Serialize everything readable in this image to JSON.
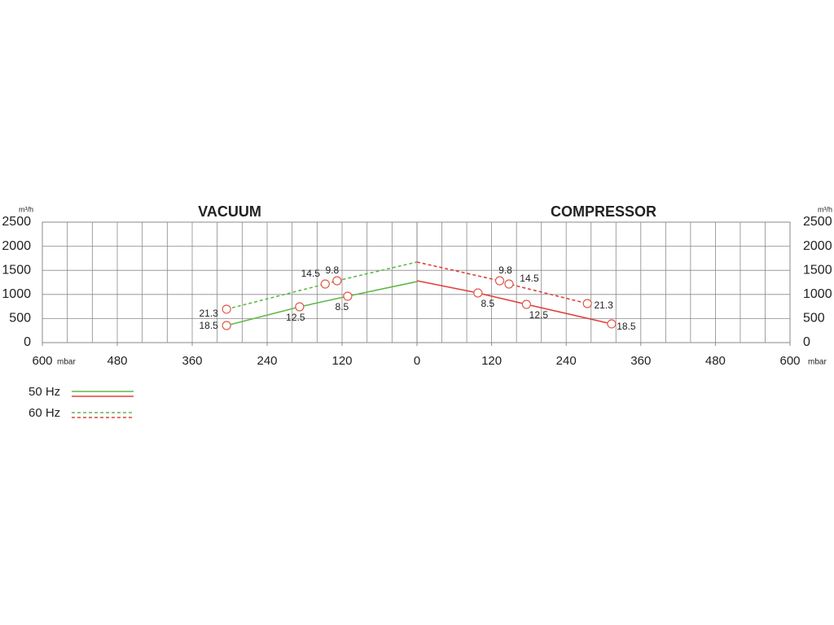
{
  "chart_data": [
    {
      "type": "line",
      "title": "VACUUM",
      "y_label": "m³/h",
      "x_label": "mbar",
      "yaxis_side": "left",
      "x_reversed": true,
      "xlim": [
        0,
        600
      ],
      "ylim": [
        0,
        2500
      ],
      "xticks": [
        600,
        480,
        360,
        240,
        120
      ],
      "yticks": [
        0,
        500,
        1000,
        1500,
        2000,
        2500
      ],
      "xgrid": [
        40,
        80,
        120,
        160,
        200,
        240,
        280,
        320,
        360,
        400,
        440,
        480,
        520,
        560
      ],
      "series": [
        {
          "style": "solid",
          "color": "#62b94a",
          "x": [
            305,
            188,
            111,
            0
          ],
          "values": [
            355,
            743,
            963,
            1267
          ],
          "labels": [
            "18.5",
            "12.5",
            "8.5",
            null
          ]
        },
        {
          "style": "dashed",
          "color": "#62b94a",
          "x": [
            305,
            147,
            128,
            0
          ],
          "values": [
            693,
            1216,
            1284,
            1672
          ],
          "labels": [
            "21.3",
            "14.5",
            "9.8",
            null
          ]
        }
      ]
    },
    {
      "type": "line",
      "title": "COMPRESSOR",
      "y_label": "m³/h",
      "x_label": "mbar",
      "yaxis_side": "right",
      "x_reversed": false,
      "xlim": [
        0,
        600
      ],
      "ylim": [
        0,
        2500
      ],
      "xticks": [
        0,
        120,
        240,
        360,
        480,
        600
      ],
      "yticks": [
        0,
        500,
        1000,
        1500,
        2000,
        2500
      ],
      "xgrid": [
        40,
        80,
        120,
        160,
        200,
        240,
        280,
        320,
        360,
        400,
        440,
        480,
        520,
        560
      ],
      "series": [
        {
          "style": "solid",
          "color": "#e0403a",
          "x": [
            0,
            98,
            176,
            313
          ],
          "values": [
            1284,
            1030,
            794,
            389
          ],
          "labels": [
            null,
            "8.5",
            "12.5",
            "18.5"
          ]
        },
        {
          "style": "dashed",
          "color": "#e0403a",
          "x": [
            0,
            133,
            148,
            274
          ],
          "values": [
            1672,
            1284,
            1216,
            811
          ],
          "labels": [
            null,
            "9.8",
            "14.5",
            "21.3"
          ]
        }
      ]
    }
  ],
  "legend": [
    {
      "label": "50 Hz",
      "style": "solid"
    },
    {
      "label": "60 Hz",
      "style": "dashed"
    }
  ]
}
